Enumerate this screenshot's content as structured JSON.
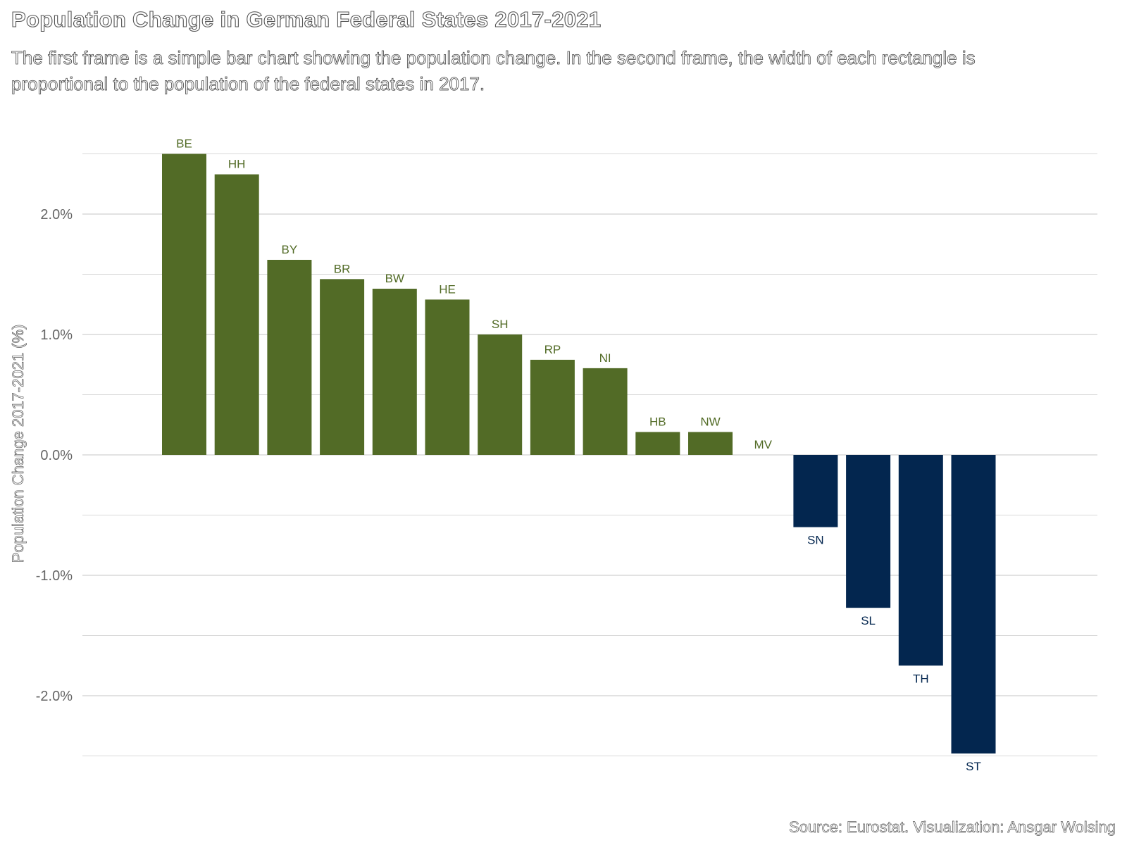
{
  "header": {
    "title": "Population Change in German Federal States 2017-2021",
    "subtitle": "The first frame is a simple bar chart showing the population change. In the second frame, the width of each rectangle is proportional to the population of the federal states in 2017."
  },
  "caption": "Source: Eurostat. Visualization: Ansgar Wolsing",
  "colors": {
    "positive": "#526B26",
    "negative": "#03264F",
    "grid": "#d9d9d9"
  },
  "chart_data": {
    "type": "bar",
    "title": "Population Change in German Federal States 2017-2021",
    "xlabel": "",
    "ylabel": "Population Change 2017-2021 (%)",
    "ylim": [
      -2.5,
      2.5
    ],
    "yticks": [
      -2.0,
      -1.0,
      0.0,
      1.0,
      2.0
    ],
    "ytick_labels": [
      "-2.0%",
      "-1.0%",
      "0.0%",
      "1.0%",
      "2.0%"
    ],
    "grid": true,
    "categories": [
      "BE",
      "HH",
      "BY",
      "BR",
      "BW",
      "HE",
      "SH",
      "RP",
      "NI",
      "HB",
      "NW",
      "MV",
      "SN",
      "SL",
      "TH",
      "ST"
    ],
    "values": [
      2.5,
      2.33,
      1.62,
      1.46,
      1.38,
      1.29,
      1.0,
      0.79,
      0.72,
      0.19,
      0.19,
      0.0,
      -0.6,
      -1.27,
      -1.75,
      -2.48
    ]
  }
}
